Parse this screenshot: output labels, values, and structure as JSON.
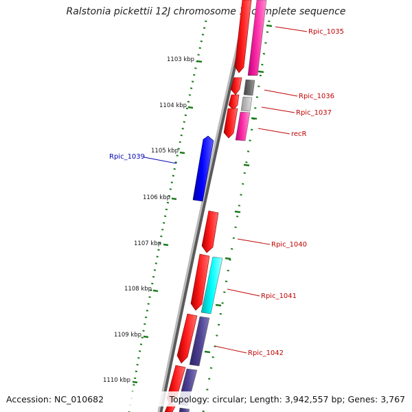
{
  "map": {
    "title": "Ralstonia pickettii 12J chromosome 1, complete sequence",
    "accession": "Accession: NC_010682",
    "summary": "Topology: circular; Length: 3,942,557 bp; Genes: 3,767",
    "ticks": [
      {
        "label": "1103 kbp",
        "kbp": 1103
      },
      {
        "label": "1104 kbp",
        "kbp": 1104
      },
      {
        "label": "1105 kbp",
        "kbp": 1105
      },
      {
        "label": "1106 kbp",
        "kbp": 1106
      },
      {
        "label": "1107 kbp",
        "kbp": 1107
      },
      {
        "label": "1108 kbp",
        "kbp": 1108
      },
      {
        "label": "1109 kbp",
        "kbp": 1109
      },
      {
        "label": "1110 kbp",
        "kbp": 1110
      }
    ],
    "genes": [
      {
        "name": "Rpic_1035",
        "label_color": "#c00000"
      },
      {
        "name": "Rpic_1036",
        "label_color": "#c00000"
      },
      {
        "name": "Rpic_1037",
        "label_color": "#c00000"
      },
      {
        "name": "recR",
        "label_color": "#c00000"
      },
      {
        "name": "Rpic_1039",
        "label_color": "#0000b0"
      },
      {
        "name": "Rpic_1040",
        "label_color": "#c00000"
      },
      {
        "name": "Rpic_1041",
        "label_color": "#c00000"
      },
      {
        "name": "Rpic_1042",
        "label_color": "#c00000"
      }
    ],
    "colors": {
      "cds_forward": "#ff0000",
      "cds_reverse": "#0000ff",
      "magenta_track": "#ff2fa8",
      "grey_dark": "#6b6b6b",
      "grey_light": "#bdbdbd",
      "cyan_track": "#00ffff",
      "purple_track": "#4b3f8f",
      "backbone": "#8c8c8c",
      "gc_dots": "#1a7a1a"
    }
  }
}
